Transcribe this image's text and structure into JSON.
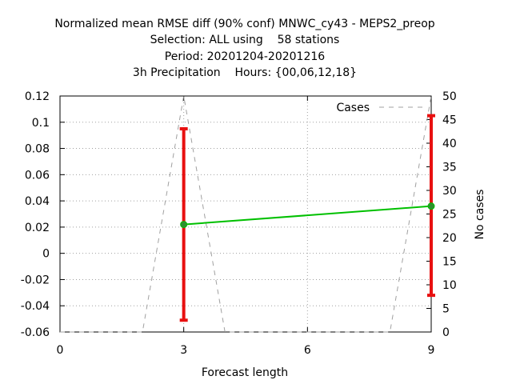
{
  "chart_data": {
    "type": "line",
    "title_lines": [
      "Normalized mean RMSE diff (90% conf) MNWC_cy43 - MEPS2_preop",
      "Selection: ALL using    58 stations",
      "Period: 20201204-20201216",
      "3h Precipitation    Hours: {00,06,12,18}"
    ],
    "xlabel": "Forecast length",
    "ylabel": "",
    "y2label": "No cases",
    "xlim": [
      0,
      9
    ],
    "ylim": [
      -0.06,
      0.12
    ],
    "y2lim": [
      0,
      50
    ],
    "xticks": [
      "0",
      "3",
      "6",
      "9"
    ],
    "xtick_values": [
      0,
      3,
      6,
      9
    ],
    "yticks": [
      "-0.06",
      "-0.04",
      "-0.02",
      "0",
      "0.02",
      "0.04",
      "0.06",
      "0.08",
      "0.1",
      "0.12"
    ],
    "ytick_values": [
      -0.06,
      -0.04,
      -0.02,
      0,
      0.02,
      0.04,
      0.06,
      0.08,
      0.1,
      0.12
    ],
    "y2ticks": [
      "0",
      "5",
      "10",
      "15",
      "20",
      "25",
      "30",
      "35",
      "40",
      "45",
      "50"
    ],
    "y2tick_values": [
      0,
      5,
      10,
      15,
      20,
      25,
      30,
      35,
      40,
      45,
      50
    ],
    "grid": true,
    "legend_position": "top-right",
    "series": [
      {
        "x": [
          3,
          9
        ],
        "y": [
          0.022,
          0.036
        ],
        "err_low": [
          -0.051,
          -0.032
        ],
        "err_high": [
          0.095,
          0.105
        ],
        "line_color": "#00c000",
        "marker_color": "#2f8f2f",
        "errorbar_color": "#e81010"
      },
      {
        "name": "Cases",
        "axis": "y2",
        "x": [
          0,
          2,
          3,
          4,
          8,
          9
        ],
        "y": [
          0,
          0,
          50,
          0,
          0,
          50
        ],
        "color": "#a0a0a0",
        "dash": "dashed"
      }
    ]
  }
}
